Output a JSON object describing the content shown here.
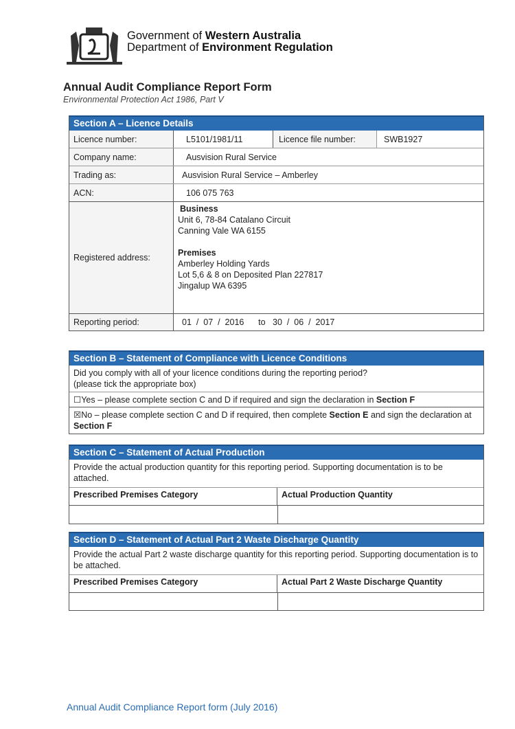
{
  "header": {
    "gov_prefix": "Government of ",
    "gov_bold": "Western Australia",
    "dept_prefix": "Department of ",
    "dept_bold": "Environment Regulation"
  },
  "form": {
    "title": "Annual Audit Compliance Report Form",
    "subtitle": "Environmental Protection Act 1986, Part V"
  },
  "section_a": {
    "title": "Section A – Licence Details",
    "licence_number_label": "Licence number:",
    "licence_number": "L5101/1981/11",
    "file_number_label": "Licence file number:",
    "file_number": "SWB1927",
    "company_label": "Company name:",
    "company": "Ausvision Rural Service",
    "trading_label": "Trading as:",
    "trading": "Ausvision Rural Service – Amberley",
    "acn_label": "ACN:",
    "acn": "106 075 763",
    "address_label": "Registered address:",
    "business_heading": "Business",
    "business_line1": "Unit 6, 78-84 Catalano Circuit",
    "business_line2": "Canning Vale WA 6155",
    "premises_heading": "Premises",
    "premises_line1": "Amberley Holding Yards",
    "premises_line2": "Lot 5,6 & 8 on Deposited Plan 227817",
    "premises_line3": "Jingalup WA 6395",
    "period_label": "Reporting period:",
    "period": "01  /  07  /  2016      to   30  /  06  /  2017"
  },
  "section_b": {
    "title": "Section B – Statement of Compliance with Licence Conditions",
    "question": "Did you comply with all of your licence conditions during the reporting period?",
    "hint": "(please tick the appropriate box)",
    "yes_box": "☐",
    "yes_text": "Yes – please complete section C and D if required and sign the declaration in ",
    "yes_bold": "Section F",
    "yes_checked": false,
    "no_box": "☒",
    "no_text1": "No – please complete section C and D if required, then complete ",
    "no_bold1": "Section E",
    "no_text2": " and sign the declaration at ",
    "no_bold2": "Section F",
    "no_checked": true
  },
  "section_c": {
    "title": "Section C – Statement of Actual Production",
    "text": "Provide the actual production quantity for this reporting period. Supporting documentation is to be attached.",
    "col1": "Prescribed Premises Category",
    "col2": "Actual Production Quantity"
  },
  "section_d": {
    "title": "Section D – Statement of Actual Part 2 Waste Discharge Quantity",
    "text": "Provide the actual Part 2 waste discharge quantity for this reporting period. Supporting documentation is to be attached.",
    "col1": "Prescribed Premises Category",
    "col2": "Actual Part 2 Waste Discharge Quantity"
  },
  "footer": "Annual Audit Compliance Report form (July 2016)",
  "colors": {
    "section_header": "#2a6db3"
  }
}
